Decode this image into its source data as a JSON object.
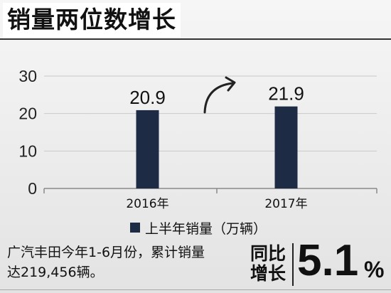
{
  "chart_data": {
    "type": "bar",
    "title": "销量两位数增长",
    "categories": [
      "2016年",
      "2017年"
    ],
    "series": [
      {
        "name": "上半年销量（万辆）",
        "values": [
          20.9,
          21.9
        ]
      }
    ],
    "yticks": [
      0,
      10,
      20,
      30
    ],
    "ylim": [
      0,
      30
    ],
    "grid": true,
    "legend": "bottom",
    "colors": {
      "bar": "#1d2b45",
      "grid": "#c9c9c9",
      "axis": "#8a8a8a"
    }
  },
  "footer": {
    "text_line1": "广汽丰田今年1-6月份，累计销量",
    "text_line2": "达219,456辆。",
    "growth_label_1": "同比",
    "growth_label_2": "增长",
    "growth_value": "5.1",
    "growth_unit": "%"
  }
}
